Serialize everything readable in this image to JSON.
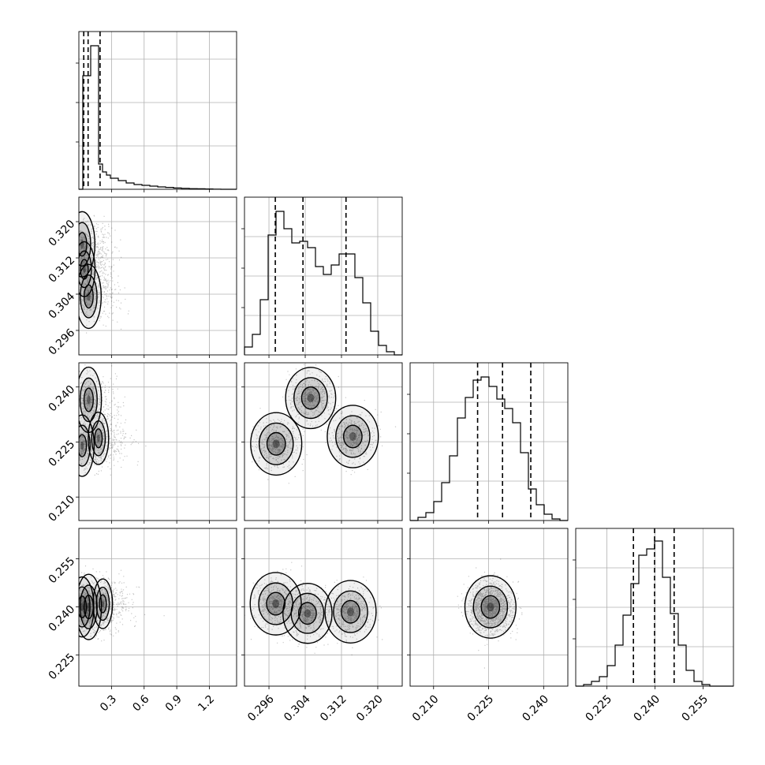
{
  "chart_data": {
    "type": "corner",
    "title": "",
    "parameters": [
      {
        "label": "",
        "range": [
          0.0,
          1.45
        ],
        "ticks": [
          0.3,
          0.6,
          0.9,
          1.2
        ],
        "tick_labels": [
          "0.3",
          "0.6",
          "0.9",
          "1.2"
        ],
        "quantiles": [
          0.045,
          0.085,
          0.195
        ]
      },
      {
        "label": "",
        "range": [
          0.2906,
          0.3254
        ],
        "ticks": [
          0.296,
          0.304,
          0.312,
          0.32
        ],
        "tick_labels": [
          "0.296",
          "0.304",
          "0.312",
          "0.320"
        ],
        "quantiles": [
          0.2974,
          0.3035,
          0.313
        ]
      },
      {
        "label": "",
        "range": [
          0.2036,
          0.2466
        ],
        "ticks": [
          0.21,
          0.225,
          0.24
        ],
        "tick_labels": [
          "0.210",
          "0.225",
          "0.240"
        ],
        "quantiles": [
          0.222,
          0.2288,
          0.2365
        ]
      },
      {
        "label": "",
        "range": [
          0.2153,
          0.2645
        ],
        "ticks": [
          0.225,
          0.24,
          0.255
        ],
        "tick_labels": [
          "0.225",
          "0.240",
          "0.255"
        ],
        "quantiles": [
          0.2333,
          0.2399,
          0.246
        ]
      }
    ],
    "histograms": [
      {
        "edges_fraction": [
          0,
          0.025,
          0.05,
          0.075,
          0.1,
          0.125,
          0.15,
          0.175,
          0.2,
          0.25,
          0.3,
          0.35,
          0.4,
          0.45,
          0.5,
          0.55,
          0.6,
          0.65,
          0.7,
          0.75,
          0.8,
          0.85,
          0.9,
          0.95,
          1.0
        ],
        "heights": [
          0.0,
          0.72,
          0.72,
          0.91,
          0.91,
          0.16,
          0.11,
          0.09,
          0.07,
          0.055,
          0.04,
          0.03,
          0.025,
          0.02,
          0.015,
          0.012,
          0.008,
          0.006,
          0.004,
          0.003,
          0.002,
          0.001,
          0.0,
          0.0
        ]
      },
      {
        "edges_fraction": [
          0,
          0.05,
          0.1,
          0.15,
          0.2,
          0.25,
          0.3,
          0.35,
          0.4,
          0.45,
          0.5,
          0.55,
          0.6,
          0.65,
          0.7,
          0.75,
          0.8,
          0.85,
          0.9,
          0.95,
          1.0
        ],
        "heights": [
          0.05,
          0.13,
          0.35,
          0.76,
          0.91,
          0.8,
          0.71,
          0.72,
          0.68,
          0.56,
          0.51,
          0.57,
          0.64,
          0.64,
          0.49,
          0.33,
          0.15,
          0.06,
          0.02,
          0.0
        ]
      },
      {
        "edges_fraction": [
          0,
          0.05,
          0.1,
          0.15,
          0.2,
          0.25,
          0.3,
          0.35,
          0.4,
          0.45,
          0.5,
          0.55,
          0.6,
          0.65,
          0.7,
          0.75,
          0.8,
          0.85,
          0.9,
          0.95,
          1.0
        ],
        "heights": [
          0.0,
          0.02,
          0.05,
          0.12,
          0.24,
          0.41,
          0.65,
          0.78,
          0.89,
          0.91,
          0.85,
          0.77,
          0.71,
          0.62,
          0.43,
          0.2,
          0.1,
          0.04,
          0.01,
          0.0
        ]
      },
      {
        "edges_fraction": [
          0,
          0.05,
          0.1,
          0.15,
          0.2,
          0.25,
          0.3,
          0.35,
          0.4,
          0.45,
          0.5,
          0.55,
          0.6,
          0.65,
          0.7,
          0.75,
          0.8,
          0.85,
          0.9,
          0.95,
          1.0
        ],
        "heights": [
          0.0,
          0.01,
          0.03,
          0.06,
          0.13,
          0.26,
          0.45,
          0.65,
          0.83,
          0.87,
          0.92,
          0.69,
          0.46,
          0.26,
          0.1,
          0.03,
          0.01,
          0.0,
          0.0,
          0.0
        ]
      }
    ],
    "density_modes": [
      {
        "row": 1,
        "col": 0,
        "modes": [
          [
            0.03,
            0.315,
            1.0
          ],
          [
            0.09,
            0.3035,
            0.95
          ],
          [
            0.05,
            0.3095,
            0.6
          ]
        ]
      },
      {
        "row": 2,
        "col": 0,
        "modes": [
          [
            0.09,
            0.2365,
            1.0
          ],
          [
            0.03,
            0.224,
            0.85
          ],
          [
            0.18,
            0.226,
            0.5
          ]
        ]
      },
      {
        "row": 2,
        "col": 1,
        "modes": [
          [
            0.2976,
            0.2245,
            1.0
          ],
          [
            0.3052,
            0.237,
            0.95
          ],
          [
            0.3145,
            0.2265,
            1.0
          ]
        ]
      },
      {
        "row": 3,
        "col": 0,
        "modes": [
          [
            0.09,
            0.24,
            1.0
          ],
          [
            0.03,
            0.24,
            0.8
          ],
          [
            0.22,
            0.241,
            0.4
          ]
        ]
      },
      {
        "row": 3,
        "col": 1,
        "modes": [
          [
            0.2975,
            0.241,
            1.0
          ],
          [
            0.3045,
            0.238,
            0.9
          ],
          [
            0.314,
            0.2385,
            1.0
          ]
        ]
      },
      {
        "row": 3,
        "col": 2,
        "modes": [
          [
            0.2255,
            0.24,
            1.0
          ]
        ]
      }
    ]
  }
}
